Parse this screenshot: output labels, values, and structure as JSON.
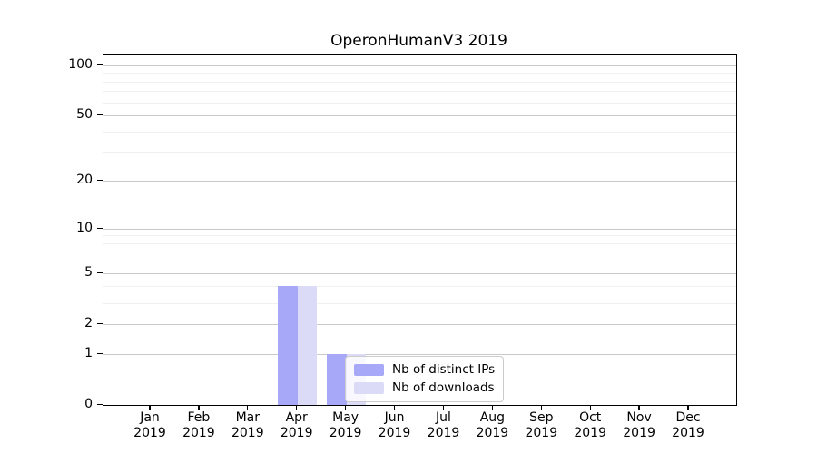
{
  "title": "OperonHumanV3 2019",
  "chart_data": {
    "type": "bar",
    "subtype": "grouped",
    "title": "OperonHumanV3 2019",
    "xlabel": "",
    "ylabel": "",
    "y_scale": "log1p",
    "ylim": [
      0,
      100
    ],
    "grid": true,
    "legend_position": "lower center-right inside plot",
    "categories": [
      {
        "month": "Jan",
        "year": "2019"
      },
      {
        "month": "Feb",
        "year": "2019"
      },
      {
        "month": "Mar",
        "year": "2019"
      },
      {
        "month": "Apr",
        "year": "2019"
      },
      {
        "month": "May",
        "year": "2019"
      },
      {
        "month": "Jun",
        "year": "2019"
      },
      {
        "month": "Jul",
        "year": "2019"
      },
      {
        "month": "Aug",
        "year": "2019"
      },
      {
        "month": "Sep",
        "year": "2019"
      },
      {
        "month": "Oct",
        "year": "2019"
      },
      {
        "month": "Nov",
        "year": "2019"
      },
      {
        "month": "Dec",
        "year": "2019"
      }
    ],
    "series": [
      {
        "name": "Nb of distinct IPs",
        "color": "#a8a8f8",
        "values": [
          0,
          0,
          0,
          4,
          1,
          0,
          0,
          0,
          0,
          0,
          0,
          0
        ]
      },
      {
        "name": "Nb of downloads",
        "color": "#dbdbf8",
        "values": [
          0,
          0,
          0,
          4,
          1,
          0,
          0,
          0,
          0,
          0,
          0,
          0
        ]
      }
    ],
    "y_major_ticks": [
      0,
      1,
      2,
      5,
      10,
      20,
      50,
      100
    ],
    "y_minor_ticks": [
      3,
      4,
      6,
      7,
      8,
      9,
      30,
      40,
      60,
      70,
      80,
      90
    ]
  },
  "colors": {
    "grid_major": "#c9c9c9",
    "grid_minor": "#f0f0f0",
    "spine": "#000000",
    "background": "#ffffff"
  }
}
